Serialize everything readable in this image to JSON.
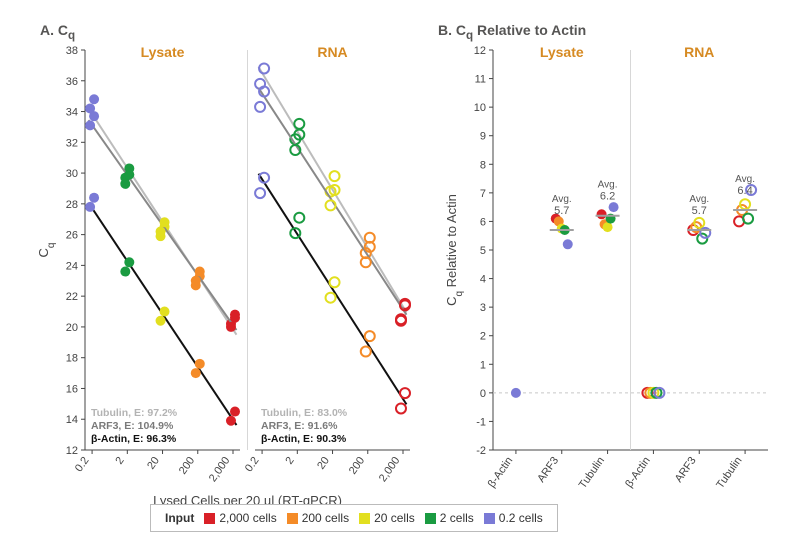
{
  "panelA": {
    "title": "A. C",
    "title_sub": "q",
    "sub_left": "Lysate",
    "sub_right": "RNA",
    "sub_color": "#d68a22",
    "ylabel": "C",
    "ylabel_sub": "q",
    "xlabel": "Lysed Cells per 20 µl (RT-qPCR)",
    "y": {
      "min": 12,
      "max": 38,
      "step": 2,
      "ticks": [
        12,
        14,
        16,
        18,
        20,
        22,
        24,
        26,
        28,
        30,
        32,
        34,
        36,
        38
      ]
    },
    "x": {
      "ticks_log": [
        -0.69897,
        0.30103,
        1.30103,
        2.30103,
        3.30103
      ],
      "tick_labels": [
        "0.2",
        "2",
        "20",
        "200",
        "2,000"
      ],
      "min_log": -0.9,
      "max_log": 3.5
    },
    "colors": {
      "bactin_line": "#111111",
      "arf3_line": "#888888",
      "tubulin_line": "#bcbcbc",
      "axis": "#444444",
      "grid": "#e5e5e5",
      "text_muted": "#8e8e8e"
    },
    "markers": {
      "2000": "#d92027",
      "200": "#f48b28",
      "20": "#e2df1f",
      "2": "#1a9b41",
      "0.2": "#7a7ad6"
    },
    "eff_text": {
      "lysate": [
        {
          "label": "Tubulin, E: 97.2%",
          "color": "#b3b3b3"
        },
        {
          "label": "ARF3, E: 104.9%",
          "color": "#7a7a7a"
        },
        {
          "label": "β-Actin, E: 96.3%",
          "color": "#111111"
        }
      ],
      "rna": [
        {
          "label": "Tubulin, E: 83.0%",
          "color": "#b3b3b3"
        },
        {
          "label": "ARF3, E: 91.6%",
          "color": "#7a7a7a"
        },
        {
          "label": "β-Actin, E: 90.3%",
          "color": "#111111"
        }
      ]
    },
    "lysate": {
      "filled": true,
      "bactin": [
        [
          -0.69897,
          28.1
        ],
        [
          0.30103,
          23.9
        ],
        [
          1.30103,
          20.7
        ],
        [
          2.30103,
          17.3
        ],
        [
          3.30103,
          14.2
        ]
      ],
      "arf3": [
        [
          -0.69897,
          33.4
        ],
        [
          0.30103,
          29.6
        ],
        [
          1.30103,
          26.5
        ],
        [
          2.30103,
          23.3
        ],
        [
          3.30103,
          20.3
        ]
      ],
      "tubulin": [
        [
          -0.69897,
          34.5
        ],
        [
          0.30103,
          30.0
        ],
        [
          1.30103,
          26.2
        ],
        [
          2.30103,
          23.0
        ],
        [
          3.30103,
          20.5
        ]
      ],
      "jitter": 0.3
    },
    "rna": {
      "filled": false,
      "bactin": [
        [
          -0.69897,
          29.2
        ],
        [
          0.30103,
          26.6
        ],
        [
          1.30103,
          22.4
        ],
        [
          2.30103,
          18.9
        ],
        [
          3.30103,
          15.2
        ]
      ],
      "arf3": [
        [
          -0.69897,
          34.8
        ],
        [
          0.30103,
          32.0
        ],
        [
          1.30103,
          28.4
        ],
        [
          2.30103,
          24.7
        ],
        [
          3.30103,
          20.9
        ]
      ],
      "tubulin": [
        [
          -0.69897,
          36.3
        ],
        [
          0.30103,
          32.7
        ],
        [
          1.30103,
          29.3
        ],
        [
          2.30103,
          25.3
        ],
        [
          3.30103,
          21.0
        ]
      ],
      "jitter": 0.5
    }
  },
  "panelB": {
    "title": "B. C",
    "title_sub": "q",
    "title_suffix": " Relative to Actin",
    "sub_left": "Lysate",
    "sub_right": "RNA",
    "sub_color": "#d68a22",
    "ylabel_pre": "C",
    "ylabel_sub": "q",
    "ylabel_suffix": " Relative to Actin",
    "y": {
      "min": -2,
      "max": 12,
      "step": 1,
      "ticks": [
        -2,
        -1,
        0,
        1,
        2,
        3,
        4,
        5,
        6,
        7,
        8,
        9,
        10,
        11,
        12
      ]
    },
    "colors": {
      "axis": "#444444",
      "zero_line": "#c7c7c7",
      "avg_tick": "#a0a0a0",
      "text_muted": "#8e8e8e"
    },
    "categories": [
      "β-Actin",
      "ARF3",
      "Tubulin",
      "β-Actin",
      "ARF3",
      "Tubulin"
    ],
    "groups": [
      {
        "side": "lysate",
        "avg_labels": {
          "ARF3": "5.7",
          "Tubulin": "6.2"
        },
        "series": {
          "β-Actin": [
            {
              "cells": "0.2",
              "val": 0.0,
              "filled": true
            }
          ],
          "ARF3": [
            {
              "cells": "2000",
              "val": 6.1,
              "filled": true
            },
            {
              "cells": "200",
              "val": 6.0,
              "filled": true
            },
            {
              "cells": "20",
              "val": 5.75,
              "filled": true
            },
            {
              "cells": "2",
              "val": 5.7,
              "filled": true
            },
            {
              "cells": "0.2",
              "val": 5.2,
              "filled": true
            }
          ],
          "Tubulin": [
            {
              "cells": "2000",
              "val": 6.25,
              "filled": true
            },
            {
              "cells": "200",
              "val": 5.9,
              "filled": true
            },
            {
              "cells": "20",
              "val": 5.8,
              "filled": true
            },
            {
              "cells": "2",
              "val": 6.1,
              "filled": true
            },
            {
              "cells": "0.2",
              "val": 6.5,
              "filled": true
            }
          ]
        },
        "avgs": {
          "ARF3": 5.7,
          "Tubulin": 6.2
        }
      },
      {
        "side": "rna",
        "avg_labels": {
          "ARF3": "5.7",
          "Tubulin": "6.4"
        },
        "series": {
          "β-Actin": [
            {
              "cells": "2000",
              "val": 0.0,
              "filled": false
            },
            {
              "cells": "200",
              "val": 0.0,
              "filled": false
            },
            {
              "cells": "20",
              "val": 0.0,
              "filled": false
            },
            {
              "cells": "2",
              "val": 0.0,
              "filled": false
            },
            {
              "cells": "0.2",
              "val": 0.0,
              "filled": false
            }
          ],
          "ARF3": [
            {
              "cells": "2000",
              "val": 5.7,
              "filled": false
            },
            {
              "cells": "200",
              "val": 5.8,
              "filled": false
            },
            {
              "cells": "20",
              "val": 5.95,
              "filled": false
            },
            {
              "cells": "2",
              "val": 5.4,
              "filled": false
            },
            {
              "cells": "0.2",
              "val": 5.6,
              "filled": false
            }
          ],
          "Tubulin": [
            {
              "cells": "2000",
              "val": 6.0,
              "filled": false
            },
            {
              "cells": "200",
              "val": 6.4,
              "filled": false
            },
            {
              "cells": "20",
              "val": 6.6,
              "filled": false
            },
            {
              "cells": "2",
              "val": 6.1,
              "filled": false
            },
            {
              "cells": "0.2",
              "val": 7.1,
              "filled": false
            }
          ]
        },
        "avgs": {
          "ARF3": 5.7,
          "Tubulin": 6.4
        }
      }
    ]
  },
  "legend": {
    "title": "Input",
    "items": [
      {
        "label": "2,000 cells",
        "color": "#d92027",
        "key": "2000"
      },
      {
        "label": "200 cells",
        "color": "#f48b28",
        "key": "200"
      },
      {
        "label": "20 cells",
        "color": "#e2df1f",
        "key": "20"
      },
      {
        "label": "2 cells",
        "color": "#1a9b41",
        "key": "2"
      },
      {
        "label": "0.2 cells",
        "color": "#7a7ad6",
        "key": "0.2"
      }
    ]
  },
  "avg_label_prefix": "Avg.",
  "fonts": {
    "title_size": 14,
    "axis_label_size": 13,
    "tick_size": 11,
    "annot_size": 11
  }
}
